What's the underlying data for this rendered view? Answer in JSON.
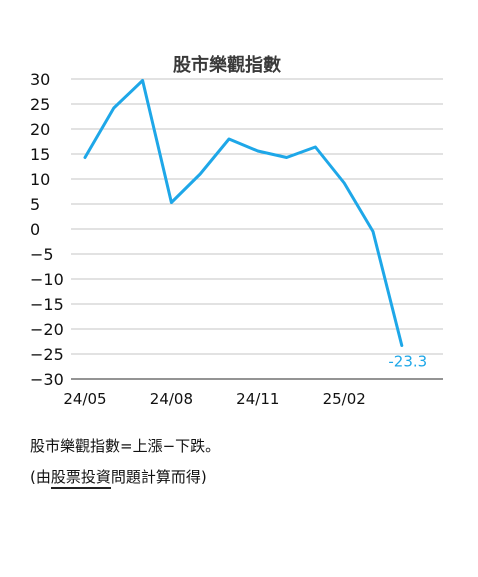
{
  "chart_data": {
    "type": "line",
    "title": "股市樂觀指數",
    "xlabel": "",
    "ylabel": "",
    "ylim": [
      -30,
      30
    ],
    "yticks": [
      30,
      25,
      20,
      15,
      10,
      5,
      0,
      -5,
      -10,
      -15,
      -20,
      -25,
      -30
    ],
    "ytick_labels": [
      "30",
      "25",
      "20",
      "15",
      "10",
      "5",
      "0",
      "−5",
      "−10",
      "−15",
      "−20",
      "−25",
      "−30"
    ],
    "xticks": [
      {
        "label": "24/05",
        "index": 0
      },
      {
        "label": "24/08",
        "index": 3
      },
      {
        "label": "24/11",
        "index": 6
      },
      {
        "label": "25/02",
        "index": 9
      }
    ],
    "grid": true,
    "legend": "none",
    "series": [
      {
        "color": "#1ea7e8",
        "values": [
          14.3,
          24.2,
          29.7,
          5.3,
          11.0,
          18.0,
          15.6,
          14.3,
          16.4,
          9.2,
          -0.5,
          -23.3
        ]
      }
    ],
    "end_label": "-23.3"
  },
  "notes": {
    "line1": "股市樂觀指數=上漲−下跌。",
    "line2_prefix": "(由",
    "line2_underlined": "股票投資",
    "line2_suffix": "問題計算而得)"
  }
}
